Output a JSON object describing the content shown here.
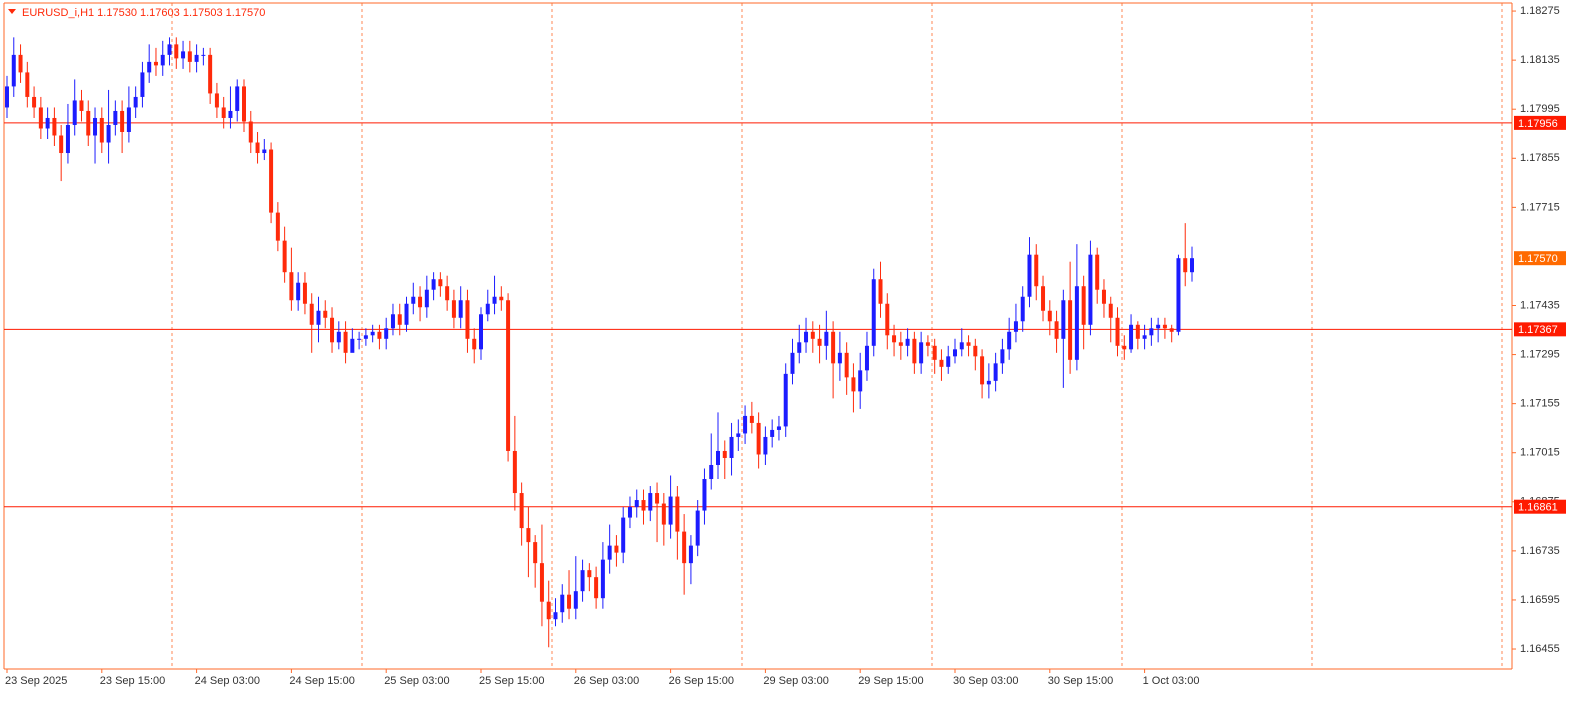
{
  "chart_data": {
    "type": "candlestick",
    "title": "EURUSD_i,H1  1.17530 1.17603 1.17503 1.17570",
    "up_color": "#1c1cff",
    "down_color": "#ff2a0a",
    "line_color": "#ff1a00",
    "grid": true,
    "ylim": [
      1.16398,
      1.18298
    ],
    "yticks": [
      1.18275,
      1.18135,
      1.17995,
      1.17855,
      1.17715,
      1.17435,
      1.17295,
      1.17155,
      1.17015,
      1.16875,
      1.16735,
      1.16595,
      1.16455
    ],
    "hlines": [
      1.17956,
      1.17367,
      1.16861
    ],
    "current_price": {
      "value": 1.1757,
      "label": "1.17570"
    },
    "categories": [
      "23 Sep 2025",
      null,
      null,
      null,
      null,
      null,
      null,
      null,
      null,
      null,
      null,
      null,
      null,
      null,
      "23 Sep 15:00",
      null,
      null,
      null,
      null,
      null,
      null,
      null,
      null,
      null,
      null,
      null,
      null,
      null,
      "24 Sep 03:00",
      null,
      null,
      null,
      null,
      null,
      null,
      null,
      null,
      null,
      null,
      null,
      null,
      null,
      "24 Sep 15:00",
      null,
      null,
      null,
      null,
      null,
      null,
      null,
      null,
      null,
      null,
      null,
      null,
      null,
      "25 Sep 03:00",
      null,
      null,
      null,
      null,
      null,
      null,
      null,
      null,
      null,
      null,
      null,
      null,
      null,
      "25 Sep 15:00",
      null,
      null,
      null,
      null,
      null,
      null,
      null,
      null,
      null,
      null,
      null,
      null,
      null,
      "26 Sep 03:00",
      null,
      null,
      null,
      null,
      null,
      null,
      null,
      null,
      null,
      null,
      null,
      null,
      null,
      "26 Sep 15:00",
      null,
      null,
      null,
      null,
      null,
      null,
      null,
      null,
      null,
      null,
      null,
      null,
      null,
      "29 Sep 03:00",
      null,
      null,
      null,
      null,
      null,
      null,
      null,
      null,
      null,
      null,
      null,
      null,
      null,
      "29 Sep 15:00",
      null,
      null,
      null,
      null,
      null,
      null,
      null,
      null,
      null,
      null,
      null,
      null,
      null,
      "30 Sep 03:00",
      null,
      null,
      null,
      null,
      null,
      null,
      null,
      null,
      null,
      null,
      null,
      null,
      null,
      "30 Sep 15:00",
      null,
      null,
      null,
      null,
      null,
      null,
      null,
      null,
      null,
      null,
      null,
      null,
      null,
      "1 Oct 03:00",
      null,
      null,
      null,
      null,
      null,
      null,
      null
    ],
    "open": [
      1.18,
      1.1806,
      1.1815,
      1.181,
      1.1803,
      1.18,
      1.1794,
      1.1797,
      1.1792,
      1.1787,
      1.1795,
      1.1802,
      1.1799,
      1.1792,
      1.1797,
      1.179,
      1.1795,
      1.1799,
      1.1793,
      1.18,
      1.1803,
      1.181,
      1.1813,
      1.1812,
      1.1815,
      1.1818,
      1.1814,
      1.1816,
      1.1813,
      1.1815,
      1.1815,
      1.1804,
      1.18,
      1.1797,
      1.1799,
      1.1806,
      1.1796,
      1.179,
      1.1787,
      1.1788,
      1.177,
      1.1762,
      1.1753,
      1.1745,
      1.175,
      1.1744,
      1.1738,
      1.1742,
      1.174,
      1.1733,
      1.1736,
      1.173,
      1.1734,
      1.1734,
      1.1735,
      1.1736,
      1.1734,
      1.1737,
      1.1741,
      1.1738,
      1.1744,
      1.1746,
      1.1743,
      1.1748,
      1.1751,
      1.1749,
      1.1745,
      1.174,
      1.1745,
      1.1734,
      1.1731,
      1.1741,
      1.1744,
      1.1746,
      1.1745,
      1.1702,
      1.169,
      1.168,
      1.1676,
      1.167,
      1.1659,
      1.1654,
      1.1656,
      1.1661,
      1.1657,
      1.1662,
      1.1668,
      1.1666,
      1.166,
      1.1671,
      1.1675,
      1.1673,
      1.1683,
      1.1686,
      1.1688,
      1.1685,
      1.169,
      1.1687,
      1.1681,
      1.1689,
      1.1679,
      1.167,
      1.1675,
      1.1685,
      1.1694,
      1.1698,
      1.1702,
      1.17,
      1.1706,
      1.1707,
      1.1712,
      1.171,
      1.1701,
      1.1706,
      1.1708,
      1.1709,
      1.1724,
      1.173,
      1.1733,
      1.1736,
      1.1734,
      1.1732,
      1.1736,
      1.1727,
      1.173,
      1.1723,
      1.1719,
      1.1725,
      1.1732,
      1.1751,
      1.1744,
      1.1735,
      1.1733,
      1.1732,
      1.1734,
      1.1727,
      1.1733,
      1.1732,
      1.1728,
      1.1726,
      1.1729,
      1.1731,
      1.1733,
      1.1732,
      1.1729,
      1.1721,
      1.1722,
      1.1727,
      1.1731,
      1.1736,
      1.1739,
      1.1746,
      1.1758,
      1.1749,
      1.1742,
      1.1739,
      1.1734,
      1.1745,
      1.1728,
      1.1749,
      1.1738,
      1.1758,
      1.1748,
      1.1744,
      1.174,
      1.1732,
      1.1731,
      1.1738,
      1.1734,
      1.1735,
      1.1737,
      1.1738,
      1.1737,
      1.1736,
      1.1757,
      1.1753
    ],
    "high": [
      1.1809,
      1.182,
      1.1818,
      1.1813,
      1.1806,
      1.1803,
      1.18,
      1.18,
      1.1795,
      1.1801,
      1.1808,
      1.1805,
      1.1802,
      1.18,
      1.18,
      1.1805,
      1.1802,
      1.1802,
      1.1806,
      1.1806,
      1.1813,
      1.1818,
      1.1817,
      1.1819,
      1.182,
      1.182,
      1.1819,
      1.1819,
      1.1818,
      1.1817,
      1.1817,
      1.1807,
      1.1803,
      1.1806,
      1.1808,
      1.1808,
      1.1799,
      1.1793,
      1.1791,
      1.179,
      1.1773,
      1.1766,
      1.176,
      1.1753,
      1.1753,
      1.1747,
      1.1746,
      1.1745,
      1.1743,
      1.1739,
      1.1739,
      1.1737,
      1.1736,
      1.1737,
      1.1738,
      1.1738,
      1.174,
      1.1744,
      1.1744,
      1.1746,
      1.175,
      1.1749,
      1.1752,
      1.1753,
      1.1753,
      1.1752,
      1.1748,
      1.1749,
      1.1748,
      1.1737,
      1.1743,
      1.1748,
      1.1752,
      1.1749,
      1.1747,
      1.1712,
      1.1693,
      1.1686,
      1.1678,
      1.1681,
      1.1665,
      1.166,
      1.1664,
      1.1668,
      1.1672,
      1.1671,
      1.167,
      1.1669,
      1.1676,
      1.1681,
      1.1678,
      1.1686,
      1.1689,
      1.1691,
      1.1691,
      1.1692,
      1.1693,
      1.169,
      1.1695,
      1.1692,
      1.1684,
      1.1678,
      1.1688,
      1.1697,
      1.1707,
      1.1713,
      1.1705,
      1.171,
      1.1711,
      1.1715,
      1.1716,
      1.1713,
      1.1709,
      1.1711,
      1.1712,
      1.1727,
      1.1734,
      1.1738,
      1.174,
      1.1739,
      1.1738,
      1.1742,
      1.1739,
      1.1736,
      1.1733,
      1.1727,
      1.173,
      1.1736,
      1.1754,
      1.1756,
      1.1747,
      1.1738,
      1.1736,
      1.1737,
      1.1736,
      1.1736,
      1.1735,
      1.1734,
      1.1731,
      1.1732,
      1.1734,
      1.1737,
      1.1735,
      1.1734,
      1.1731,
      1.1727,
      1.173,
      1.1734,
      1.174,
      1.1744,
      1.1749,
      1.1763,
      1.1761,
      1.1752,
      1.1745,
      1.1742,
      1.1748,
      1.1756,
      1.1761,
      1.1752,
      1.1762,
      1.176,
      1.1751,
      1.1746,
      1.1743,
      1.1735,
      1.1741,
      1.1739,
      1.1738,
      1.174,
      1.174,
      1.174,
      1.1738,
      1.1758,
      1.1767,
      1.17603
    ],
    "low": [
      1.1797,
      1.1803,
      1.1807,
      1.18,
      1.1797,
      1.1791,
      1.1791,
      1.1789,
      1.1779,
      1.1784,
      1.1792,
      1.1796,
      1.1789,
      1.1784,
      1.1787,
      1.1784,
      1.1792,
      1.1787,
      1.179,
      1.1797,
      1.18,
      1.1807,
      1.1809,
      1.1809,
      1.1812,
      1.1811,
      1.1811,
      1.181,
      1.181,
      1.1812,
      1.1801,
      1.1797,
      1.1794,
      1.1794,
      1.1796,
      1.1793,
      1.1787,
      1.1784,
      1.1785,
      1.1767,
      1.1759,
      1.175,
      1.1742,
      1.1742,
      1.1741,
      1.173,
      1.1733,
      1.1737,
      1.173,
      1.1731,
      1.1727,
      1.1731,
      1.1731,
      1.1732,
      1.1733,
      1.1731,
      1.1731,
      1.1735,
      1.1735,
      1.1736,
      1.1741,
      1.1739,
      1.174,
      1.1745,
      1.1746,
      1.1742,
      1.1737,
      1.1737,
      1.173,
      1.1727,
      1.1728,
      1.1739,
      1.1741,
      1.1742,
      1.1699,
      1.1685,
      1.1675,
      1.1666,
      1.1663,
      1.1652,
      1.1646,
      1.1652,
      1.1653,
      1.1654,
      1.1654,
      1.1659,
      1.1662,
      1.1657,
      1.1657,
      1.1667,
      1.1669,
      1.167,
      1.168,
      1.1683,
      1.1681,
      1.1682,
      1.1676,
      1.1675,
      1.1677,
      1.1671,
      1.1661,
      1.1664,
      1.1672,
      1.1681,
      1.1691,
      1.1694,
      1.1694,
      1.1695,
      1.1702,
      1.1704,
      1.1707,
      1.1697,
      1.1698,
      1.1703,
      1.1705,
      1.1706,
      1.1721,
      1.1727,
      1.173,
      1.173,
      1.1727,
      1.1728,
      1.1717,
      1.1722,
      1.1718,
      1.1713,
      1.1714,
      1.1722,
      1.1729,
      1.174,
      1.1731,
      1.1729,
      1.1728,
      1.1729,
      1.1724,
      1.1724,
      1.1729,
      1.1724,
      1.1722,
      1.1724,
      1.1727,
      1.1729,
      1.1729,
      1.1725,
      1.1717,
      1.1717,
      1.1719,
      1.1724,
      1.1728,
      1.1733,
      1.1736,
      1.1743,
      1.1745,
      1.1739,
      1.1735,
      1.173,
      1.172,
      1.1724,
      1.1725,
      1.1731,
      1.1735,
      1.1744,
      1.174,
      1.1733,
      1.1729,
      1.1728,
      1.173,
      1.1731,
      1.1731,
      1.1732,
      1.1733,
      1.1734,
      1.1733,
      1.1735,
      1.1749,
      1.17503
    ],
    "close": [
      1.1806,
      1.1815,
      1.181,
      1.1803,
      1.18,
      1.1794,
      1.1797,
      1.1792,
      1.1787,
      1.1795,
      1.1802,
      1.1799,
      1.1792,
      1.1797,
      1.179,
      1.1795,
      1.1799,
      1.1793,
      1.18,
      1.1803,
      1.181,
      1.1813,
      1.1812,
      1.1815,
      1.1818,
      1.1814,
      1.1816,
      1.1813,
      1.1815,
      1.1815,
      1.1804,
      1.18,
      1.1797,
      1.1799,
      1.1806,
      1.1796,
      1.179,
      1.1787,
      1.1788,
      1.177,
      1.1762,
      1.1753,
      1.1745,
      1.175,
      1.1744,
      1.1738,
      1.1742,
      1.174,
      1.1733,
      1.1736,
      1.173,
      1.1734,
      1.1734,
      1.1735,
      1.1736,
      1.1734,
      1.1737,
      1.1741,
      1.1738,
      1.1744,
      1.1746,
      1.1743,
      1.1748,
      1.1751,
      1.1749,
      1.1745,
      1.174,
      1.1745,
      1.1734,
      1.1731,
      1.1741,
      1.1744,
      1.1746,
      1.1745,
      1.1702,
      1.169,
      1.168,
      1.1676,
      1.167,
      1.1659,
      1.1654,
      1.1656,
      1.1661,
      1.1657,
      1.1662,
      1.1668,
      1.1666,
      1.166,
      1.1671,
      1.1675,
      1.1673,
      1.1683,
      1.1686,
      1.1688,
      1.1685,
      1.169,
      1.1687,
      1.1681,
      1.1689,
      1.1679,
      1.167,
      1.1675,
      1.1685,
      1.1694,
      1.1698,
      1.1702,
      1.17,
      1.1706,
      1.1707,
      1.1712,
      1.171,
      1.1701,
      1.1706,
      1.1708,
      1.1709,
      1.1724,
      1.173,
      1.1733,
      1.1736,
      1.1734,
      1.1732,
      1.1736,
      1.1727,
      1.173,
      1.1723,
      1.1719,
      1.1725,
      1.1732,
      1.1751,
      1.1744,
      1.1735,
      1.1733,
      1.1732,
      1.1734,
      1.1727,
      1.1733,
      1.1732,
      1.1728,
      1.1726,
      1.1729,
      1.1731,
      1.1733,
      1.1732,
      1.1729,
      1.1721,
      1.1722,
      1.1727,
      1.1731,
      1.1736,
      1.1739,
      1.1746,
      1.1758,
      1.1749,
      1.1742,
      1.1739,
      1.1734,
      1.1745,
      1.1728,
      1.1749,
      1.1738,
      1.1758,
      1.1748,
      1.1744,
      1.174,
      1.1732,
      1.1731,
      1.1738,
      1.1734,
      1.1735,
      1.1737,
      1.1738,
      1.1737,
      1.1736,
      1.1757,
      1.1753,
      1.1757
    ]
  }
}
